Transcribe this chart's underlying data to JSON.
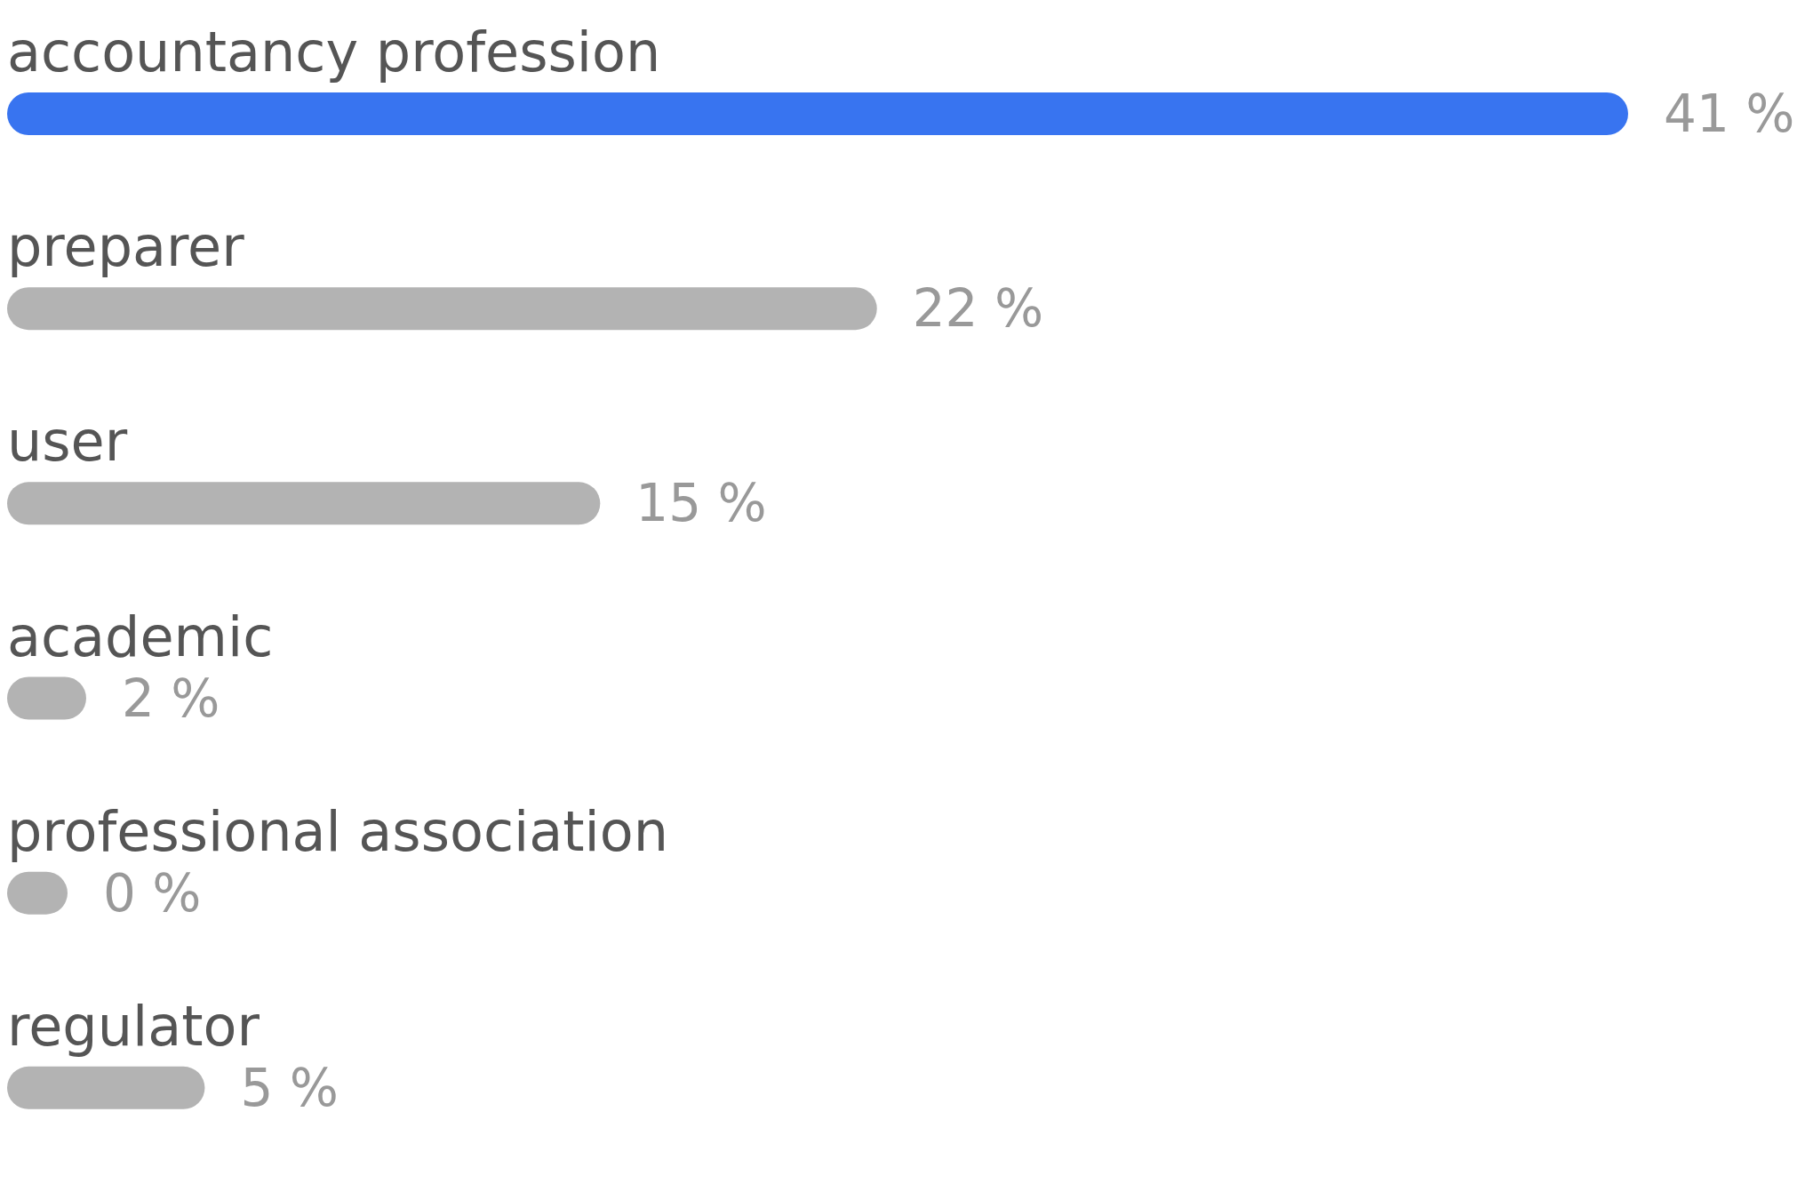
{
  "chart_data": {
    "type": "bar",
    "orientation": "horizontal",
    "categories": [
      "accountancy profession",
      "preparer",
      "user",
      "academic",
      "professional association",
      "regulator"
    ],
    "values": [
      41,
      22,
      15,
      2,
      0,
      5
    ],
    "colors": [
      "#3874f0",
      "#b3b3b3",
      "#b3b3b3",
      "#b3b3b3",
      "#b3b3b3",
      "#b3b3b3"
    ],
    "value_labels": [
      "41 %",
      "22 %",
      "15 %",
      "2 %",
      "0 %",
      "5 %"
    ]
  }
}
